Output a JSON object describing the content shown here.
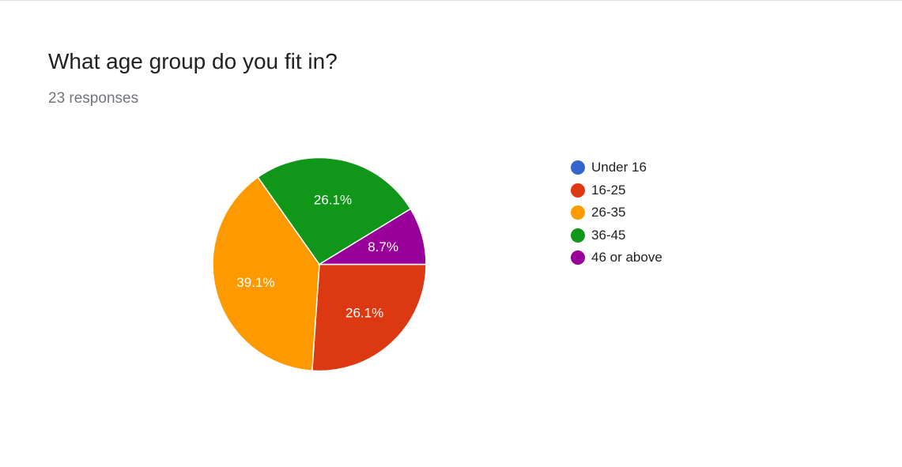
{
  "question": {
    "title": "What age group do you fit in?",
    "responses": "23 responses"
  },
  "chart_data": {
    "type": "pie",
    "title": "What age group do you fit in?",
    "total_responses": 23,
    "slices": [
      {
        "label": "Under 16",
        "value": 0,
        "percent_label": "",
        "color": "#3366cc"
      },
      {
        "label": "16-25",
        "value": 6,
        "percent_label": "26.1%",
        "color": "#dc3912"
      },
      {
        "label": "26-35",
        "value": 9,
        "percent_label": "39.1%",
        "color": "#ff9900"
      },
      {
        "label": "36-45",
        "value": 6,
        "percent_label": "26.1%",
        "color": "#109618"
      },
      {
        "label": "46 or above",
        "value": 2,
        "percent_label": "8.7%",
        "color": "#990099"
      }
    ],
    "legend_position": "right"
  }
}
